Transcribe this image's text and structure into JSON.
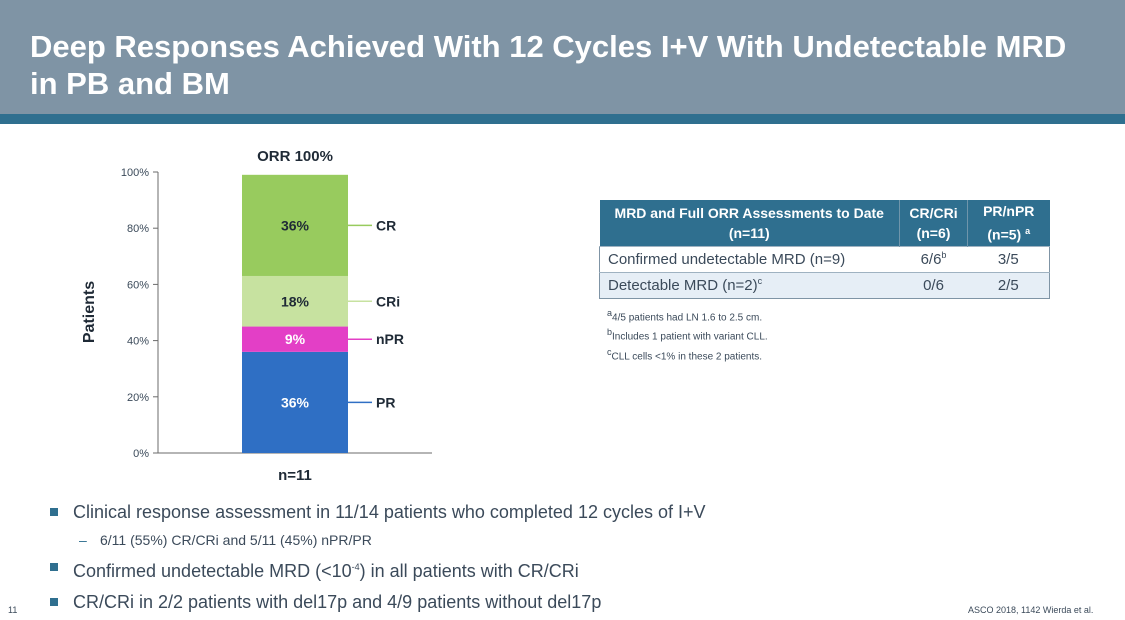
{
  "header": {
    "title": "Deep Responses Achieved With 12 Cycles I+V With Undetectable MRD in PB and BM"
  },
  "colors": {
    "header_bg": "#7f94a5",
    "header_stripe": "#2f6f8f",
    "cr": "#98cb5e",
    "cri": "#c7e2a0",
    "npr": "#e33fc6",
    "pr": "#2f6fc4"
  },
  "chart_data": {
    "type": "bar",
    "stacked": true,
    "title": "ORR 100%",
    "xlabel": "n=11",
    "ylabel": "Patients",
    "ylim": [
      0,
      100
    ],
    "yticks": [
      "0%",
      "20%",
      "40%",
      "60%",
      "80%",
      "100%"
    ],
    "categories": [
      "n=11"
    ],
    "legend_position": "right",
    "series": [
      {
        "name": "PR",
        "values": [
          36
        ],
        "label": "36%",
        "color": "#2f6fc4",
        "text_color": "#ffffff"
      },
      {
        "name": "nPR",
        "values": [
          9
        ],
        "label": "9%",
        "color": "#e33fc6",
        "text_color": "#ffffff"
      },
      {
        "name": "CRi",
        "values": [
          18
        ],
        "label": "18%",
        "color": "#c7e2a0",
        "text_color": "#1f2a36"
      },
      {
        "name": "CR",
        "values": [
          36
        ],
        "label": "36%",
        "color": "#98cb5e",
        "text_color": "#1f2a36"
      }
    ]
  },
  "table": {
    "headers": [
      "MRD and Full ORR Assessments to Date (n=11)",
      "CR/CRi (n=6)",
      "PR/nPR (n=5)"
    ],
    "header_sup": "a",
    "rows": [
      {
        "label": "Confirmed undetectable MRD (n=9)",
        "label_sup": "",
        "crcri": "6/6",
        "crcri_sup": "b",
        "prnpr": "3/5"
      },
      {
        "label": "Detectable MRD (n=2)",
        "label_sup": "c",
        "crcri": "0/6",
        "crcri_sup": "",
        "prnpr": "2/5"
      }
    ]
  },
  "footnotes": [
    {
      "sup": "a",
      "text": "4/5 patients had LN 1.6 to 2.5 cm."
    },
    {
      "sup": "b",
      "text": "Includes 1 patient with variant CLL."
    },
    {
      "sup": "c",
      "text": "CLL cells <1% in these 2 patients."
    }
  ],
  "bullets": {
    "b1": "Clinical response assessment in 11/14 patients who completed 12 cycles of I+V",
    "b1_sub": "6/11 (55%) CR/CRi and 5/11 (45%) nPR/PR",
    "b2_pre": "Confirmed undetectable MRD (<10",
    "b2_sup": "-4",
    "b2_post": ") in all patients with CR/CRi",
    "b3": "CR/CRi in 2/2 patients with del17p and 4/9 patients without del17p"
  },
  "footer": {
    "page_number": "11",
    "citation": "ASCO 2018, 1142 Wierda et al."
  }
}
